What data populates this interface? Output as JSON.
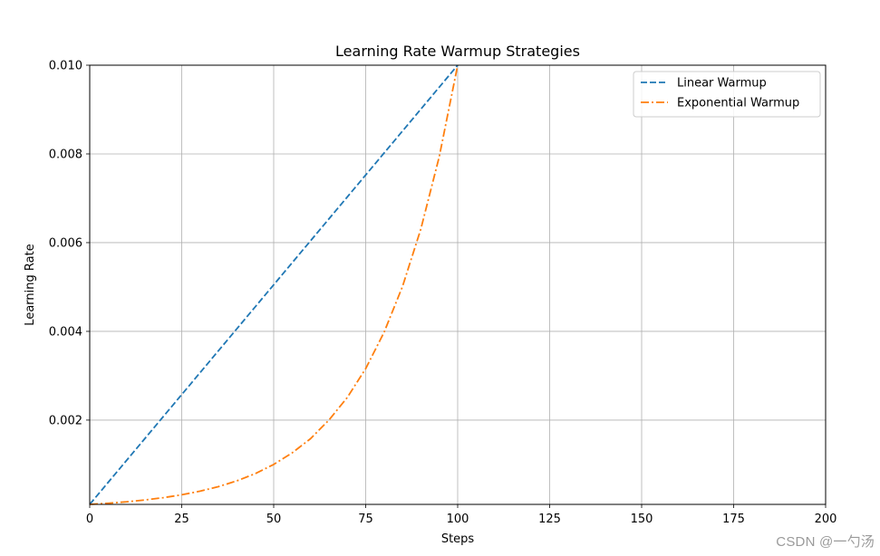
{
  "chart_data": {
    "type": "line",
    "title": "Learning Rate Warmup Strategies",
    "xlabel": "Steps",
    "ylabel": "Learning Rate",
    "xlim": [
      0,
      200
    ],
    "ylim": [
      0.0001,
      0.01
    ],
    "xticks": [
      0,
      25,
      50,
      75,
      100,
      125,
      150,
      175,
      200
    ],
    "xtick_labels": [
      "0",
      "25",
      "50",
      "75",
      "100",
      "125",
      "150",
      "175",
      "200"
    ],
    "yticks": [
      0.002,
      0.004,
      0.006,
      0.008,
      0.01
    ],
    "ytick_labels": [
      "0.002",
      "0.004",
      "0.006",
      "0.008",
      "0.010"
    ],
    "grid": true,
    "legend_position": "top-right",
    "series": [
      {
        "name": "Linear Warmup",
        "color": "#1f77b4",
        "style": "dashed",
        "x": [
          0,
          100
        ],
        "y": [
          0.0001,
          0.01
        ]
      },
      {
        "name": "Exponential Warmup",
        "color": "#ff7f0e",
        "style": "dashdot",
        "x": [
          0,
          5,
          10,
          15,
          20,
          25,
          30,
          35,
          40,
          45,
          50,
          55,
          60,
          65,
          70,
          75,
          80,
          85,
          90,
          95,
          100
        ],
        "y": [
          0.0001,
          0.000126,
          0.000158,
          0.0002,
          0.000251,
          0.000316,
          0.000398,
          0.000501,
          0.000631,
          0.000794,
          0.001,
          0.00126,
          0.00158,
          0.002,
          0.00251,
          0.00316,
          0.00398,
          0.00501,
          0.00631,
          0.00794,
          0.01
        ]
      }
    ]
  },
  "watermark": "CSDN @一勺汤"
}
